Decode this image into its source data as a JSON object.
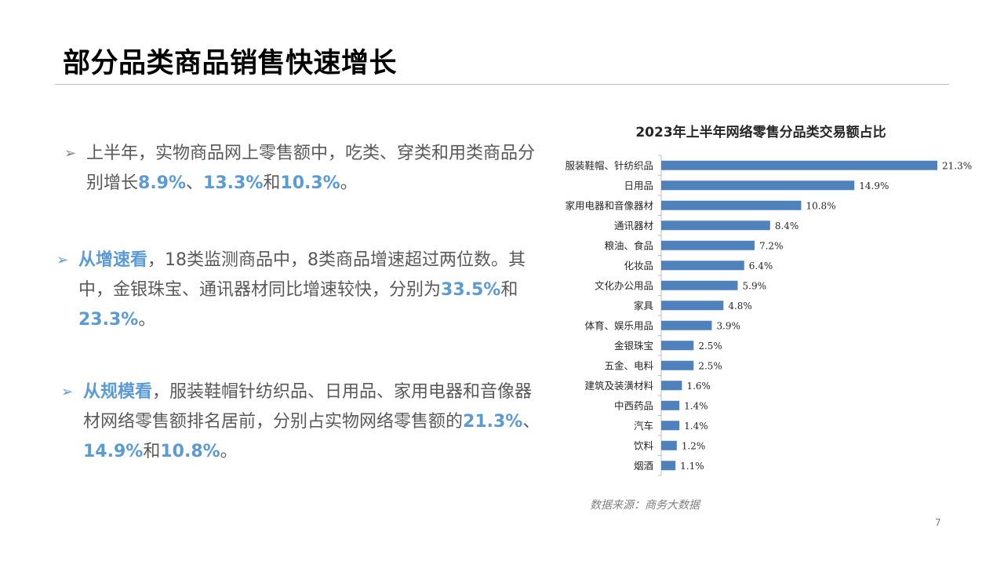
{
  "slide": {
    "title": "部分品类商品销售快速增长",
    "page_number": "7",
    "source": "数据来源：商务大数据"
  },
  "paragraphs": {
    "p1": {
      "arrow": "➢",
      "t1": "上半年，实物商品网上零售额中，吃类、穿类和用类商品分别增长",
      "h1": "8.9%",
      "t2": "、",
      "h2": "13.3%",
      "t3": "和",
      "h3": "10.3%",
      "t4": "。"
    },
    "p2": {
      "arrow": "➢",
      "lead": "从增速看",
      "t1": "，18类监测商品中，8类商品增速超过两位数。其中，金银珠宝、通讯器材同比增速较快，分别为",
      "h1": "33.5%",
      "t2": "和",
      "h2": "23.3%",
      "t3": "。"
    },
    "p3": {
      "arrow": "➢",
      "lead": "从规模看",
      "t1": "，服装鞋帽针纺织品、日用品、家用电器和音像器材网络零售额排名居前，分别占实物网络零售额的",
      "h1": "21.3%",
      "t2": "、",
      "h2": "14.9%",
      "t3": "和",
      "h3": "10.8%",
      "t4": "。"
    }
  },
  "chart_data": {
    "type": "bar",
    "orientation": "horizontal",
    "title": "2023年上半年网络零售分品类交易额占比",
    "categories": [
      "服装鞋帽、针纺织品",
      "日用品",
      "家用电器和音像器材",
      "通讯器材",
      "粮油、食品",
      "化妆品",
      "文化办公用品",
      "家具",
      "体育、娱乐用品",
      "金银珠宝",
      "五金、电料",
      "建筑及装潢材料",
      "中西药品",
      "汽车",
      "饮料",
      "烟酒"
    ],
    "values": [
      21.3,
      14.9,
      10.8,
      8.4,
      7.2,
      6.4,
      5.9,
      4.8,
      3.9,
      2.5,
      2.5,
      1.6,
      1.4,
      1.4,
      1.2,
      1.1
    ],
    "labels": [
      "21.3%",
      "14.9%",
      "10.8%",
      "8.4%",
      "7.2%",
      "6.4%",
      "5.9%",
      "4.8%",
      "3.9%",
      "2.5%",
      "2.5%",
      "1.6%",
      "1.4%",
      "1.4%",
      "1.2%",
      "1.1%"
    ],
    "bar_color": "#4f81bd",
    "xlabel": "",
    "ylabel": "",
    "legend": "none"
  }
}
